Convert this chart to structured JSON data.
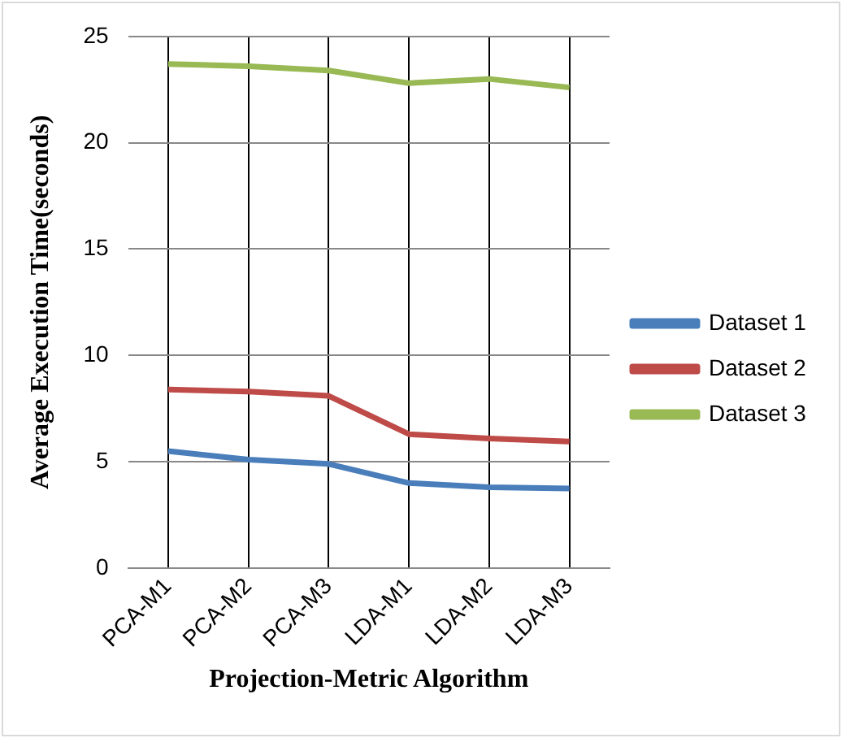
{
  "chart_data": {
    "type": "line",
    "xlabel": "Projection-Metric Algorithm",
    "ylabel": "Average Execution Time(seconds)",
    "categories": [
      "PCA-M1",
      "PCA-M2",
      "PCA-M3",
      "LDA-M1",
      "LDA-M2",
      "LDA-M3"
    ],
    "series": [
      {
        "name": "Dataset 1",
        "color": "#4a7ebb",
        "values": [
          5.5,
          5.1,
          4.9,
          4.0,
          3.8,
          3.75
        ]
      },
      {
        "name": "Dataset 2",
        "color": "#be4b48",
        "values": [
          8.4,
          8.3,
          8.1,
          6.3,
          6.1,
          5.95
        ]
      },
      {
        "name": "Dataset 3",
        "color": "#98b954",
        "values": [
          23.7,
          23.6,
          23.4,
          22.8,
          23.0,
          22.6
        ]
      }
    ],
    "ylim": [
      0,
      25
    ],
    "yticks": [
      0,
      5,
      10,
      15,
      20,
      25
    ],
    "grid": true,
    "legend": "right",
    "marker": "none",
    "line_style": "solid"
  }
}
